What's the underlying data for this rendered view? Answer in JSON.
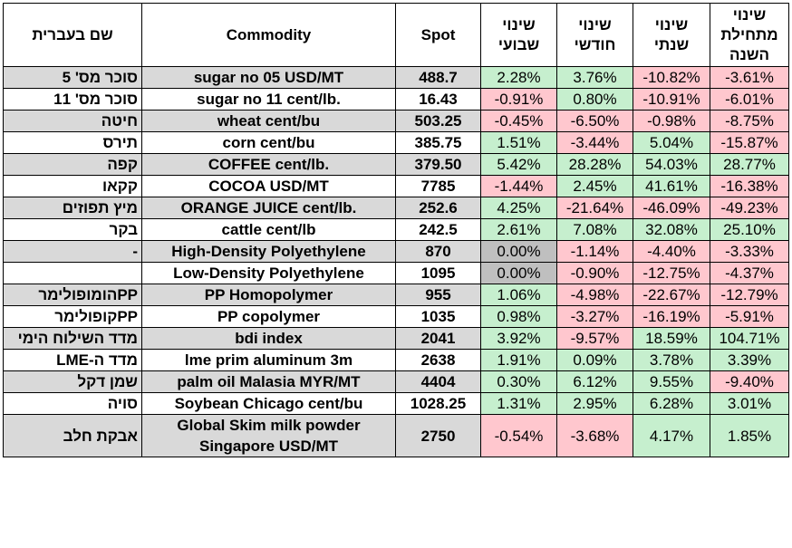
{
  "headers": {
    "hebrew_name": "שם בעברית",
    "commodity": "Commodity",
    "spot": "Spot",
    "weekly": "שינוי שבועי",
    "monthly": "שינוי חודשי",
    "yearly": "שינוי שנתי",
    "ytd": "שינוי מתחילת השנה"
  },
  "rows": [
    {
      "hebrew": "סוכר מס' 5",
      "commodity": "sugar no 05 USD/MT",
      "spot": "488.7",
      "weekly": "2.28%",
      "monthly": "3.76%",
      "yearly": "-10.82%",
      "ytd": "-3.61%",
      "shaded": true
    },
    {
      "hebrew": "סוכר מס' 11",
      "commodity": "sugar no 11 cent/lb.",
      "spot": "16.43",
      "weekly": "-0.91%",
      "monthly": "0.80%",
      "yearly": "-10.91%",
      "ytd": "-6.01%",
      "shaded": false
    },
    {
      "hebrew": "חיטה",
      "commodity": "wheat cent/bu",
      "spot": "503.25",
      "weekly": "-0.45%",
      "monthly": "-6.50%",
      "yearly": "-0.98%",
      "ytd": "-8.75%",
      "shaded": true
    },
    {
      "hebrew": "תירס",
      "commodity": "corn cent/bu",
      "spot": "385.75",
      "weekly": "1.51%",
      "monthly": "-3.44%",
      "yearly": "5.04%",
      "ytd": "-15.87%",
      "shaded": false
    },
    {
      "hebrew": "קפה",
      "commodity": "COFFEE cent/lb.",
      "spot": "379.50",
      "weekly": "5.42%",
      "monthly": "28.28%",
      "yearly": "54.03%",
      "ytd": "28.77%",
      "shaded": true
    },
    {
      "hebrew": "קקאו",
      "commodity": "COCOA USD/MT",
      "spot": "7785",
      "weekly": "-1.44%",
      "monthly": "2.45%",
      "yearly": "41.61%",
      "ytd": "-16.38%",
      "shaded": false
    },
    {
      "hebrew": "מיץ תפוזים",
      "commodity": "ORANGE JUICE cent/lb.",
      "spot": "252.6",
      "weekly": "4.25%",
      "monthly": "-21.64%",
      "yearly": "-46.09%",
      "ytd": "-49.23%",
      "shaded": true
    },
    {
      "hebrew": "בקר",
      "commodity": "cattle cent/lb",
      "spot": "242.5",
      "weekly": "2.61%",
      "monthly": "7.08%",
      "yearly": "32.08%",
      "ytd": "25.10%",
      "shaded": false
    },
    {
      "hebrew": "-",
      "commodity": "High-Density Polyethylene",
      "spot": "870",
      "weekly": "0.00%",
      "monthly": "-1.14%",
      "yearly": "-4.40%",
      "ytd": "-3.33%",
      "shaded": true,
      "tall": true
    },
    {
      "hebrew": "",
      "commodity": "Low-Density Polyethylene",
      "spot": "1095",
      "weekly": "0.00%",
      "monthly": "-0.90%",
      "yearly": "-12.75%",
      "ytd": "-4.37%",
      "shaded": false,
      "tall": true
    },
    {
      "hebrew": "PPהומופולימר",
      "commodity": "PP Homopolymer",
      "spot": "955",
      "weekly": "1.06%",
      "monthly": "-4.98%",
      "yearly": "-22.67%",
      "ytd": "-12.79%",
      "shaded": true
    },
    {
      "hebrew": "PPקופולימר",
      "commodity": "PP copolymer",
      "spot": "1035",
      "weekly": "0.98%",
      "monthly": "-3.27%",
      "yearly": "-16.19%",
      "ytd": "-5.91%",
      "shaded": false
    },
    {
      "hebrew": "מדד השילוח הימי",
      "commodity": "bdi index",
      "spot": "2041",
      "weekly": "3.92%",
      "monthly": "-9.57%",
      "yearly": "18.59%",
      "ytd": "104.71%",
      "shaded": true
    },
    {
      "hebrew": "מדד ה-LME",
      "commodity": "lme prim aluminum 3m",
      "spot": "2638",
      "weekly": "1.91%",
      "monthly": "0.09%",
      "yearly": "3.78%",
      "ytd": "3.39%",
      "shaded": false
    },
    {
      "hebrew": "שמן דקל",
      "commodity": "palm oil Malasia MYR/MT",
      "spot": "4404",
      "weekly": "0.30%",
      "monthly": "6.12%",
      "yearly": "9.55%",
      "ytd": "-9.40%",
      "shaded": true
    },
    {
      "hebrew": "סויה",
      "commodity": "Soybean Chicago cent/bu",
      "spot": "1028.25",
      "weekly": "1.31%",
      "monthly": "2.95%",
      "yearly": "6.28%",
      "ytd": "3.01%",
      "shaded": false
    },
    {
      "hebrew": "אבקת חלב",
      "commodity": "Global Skim milk powder Singapore USD/MT",
      "spot": "2750",
      "weekly": "-0.54%",
      "monthly": "-3.68%",
      "yearly": "4.17%",
      "ytd": "1.85%",
      "shaded": true,
      "tall": true
    }
  ],
  "colors": {
    "positive": "#c6efce",
    "negative": "#ffc7ce",
    "zero": "#bfbfbf",
    "row_shade": "#d9d9d9"
  }
}
